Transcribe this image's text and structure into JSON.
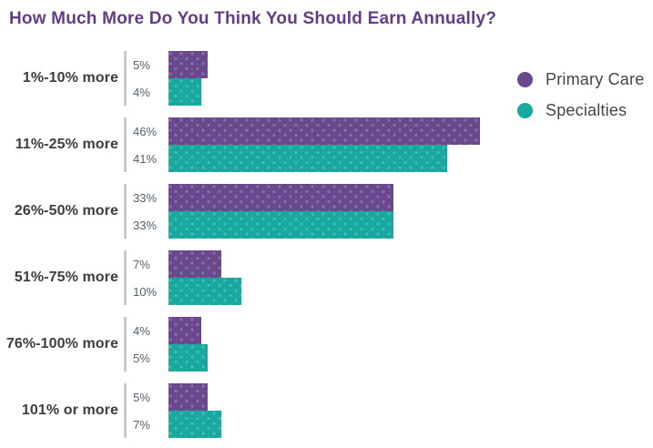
{
  "title": "How Much More Do You Think You Should Earn Annually?",
  "colors": {
    "primary_care": "#69488e",
    "specialties": "#17a8a0",
    "title_text": "#643c87",
    "axis_line": "#c9c9c9",
    "category_label": "#3d3d3d",
    "value_label": "#52616d",
    "legend_text": "#454545",
    "background": "#ffffff"
  },
  "legend": {
    "items": [
      {
        "label": "Primary Care",
        "color": "#69488e"
      },
      {
        "label": "Specialties",
        "color": "#17a8a0"
      }
    ]
  },
  "chart_data": {
    "type": "bar",
    "orientation": "horizontal",
    "title": "How Much More Do You Think You Should Earn Annually?",
    "categories": [
      "1%-10% more",
      "11%-25% more",
      "26%-50% more",
      "51%-75% more",
      "76%-100% more",
      "101% or more"
    ],
    "series": [
      {
        "name": "Primary Care",
        "color": "#69488e",
        "values": [
          5,
          46,
          33,
          7,
          4,
          5
        ]
      },
      {
        "name": "Specialties",
        "color": "#17a8a0",
        "values": [
          4,
          41,
          33,
          10,
          5,
          7
        ]
      }
    ],
    "value_suffix": "%",
    "value_label_position": "left-of-bar",
    "xlim": [
      0,
      50
    ],
    "grid": false,
    "legend_position": "top-right",
    "bar_texture": "light-dot-pattern"
  }
}
